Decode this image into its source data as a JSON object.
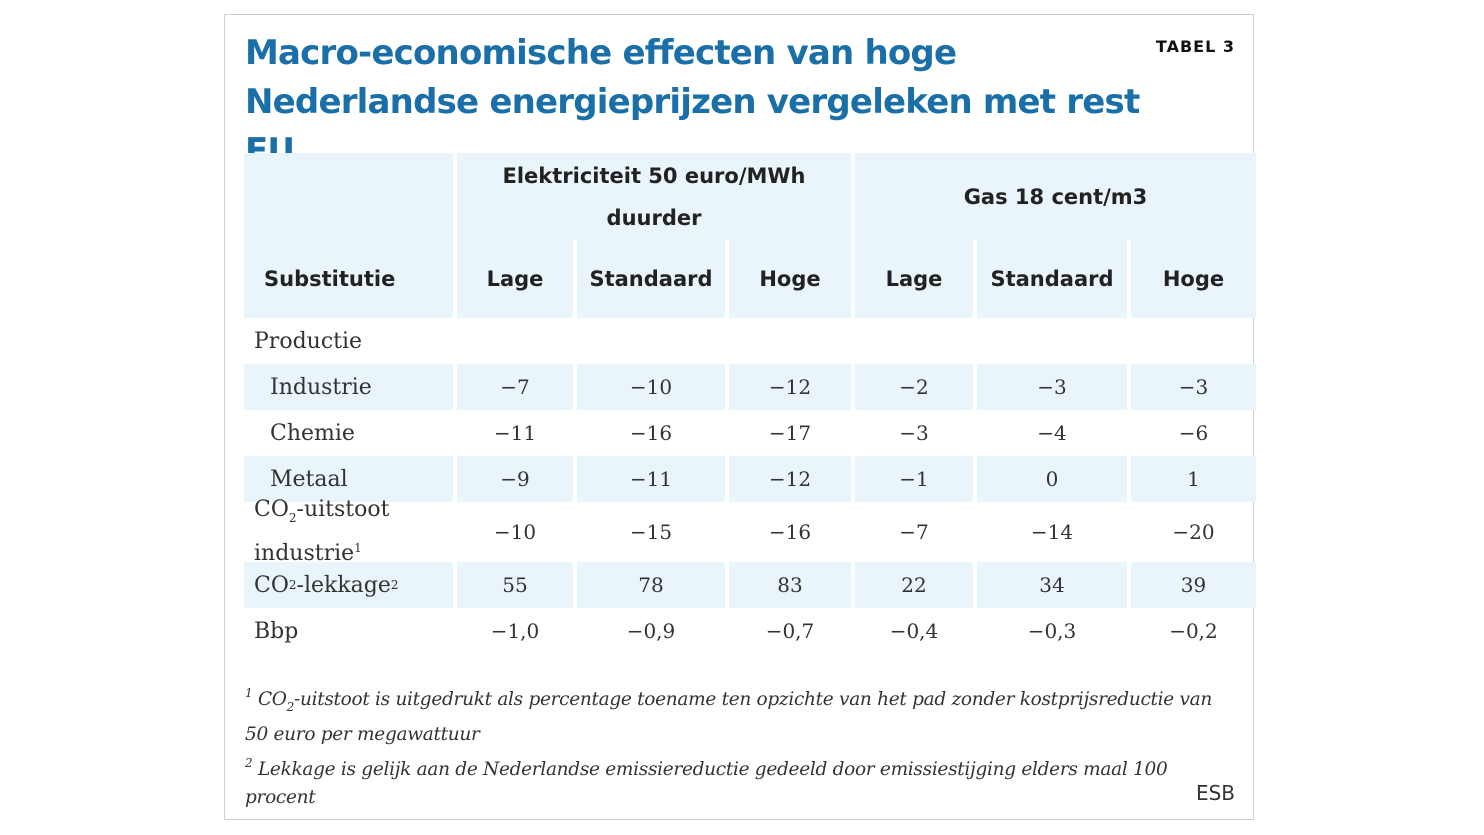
{
  "table": {
    "tag": "TABEL 3",
    "title_line1": "Macro-economische effecten van hoge",
    "title_line2": "Nederlandse energieprijzen vergeleken met rest EU",
    "group_headers": [
      "Elektriciteit 50 euro/MWh duurder",
      "Gas 18 cent/m3"
    ],
    "row_header_label": "Substitutie",
    "column_headers": [
      "Lage",
      "Standaard",
      "Hoge",
      "Lage",
      "Standaard",
      "Hoge"
    ],
    "section_label": "Productie",
    "rows": [
      {
        "label": "Industrie",
        "values": [
          "−7",
          "−10",
          "−12",
          "−2",
          "−3",
          "−3"
        ]
      },
      {
        "label": "Chemie",
        "values": [
          "−11",
          "−16",
          "−17",
          "−3",
          "−4",
          "−6"
        ]
      },
      {
        "label": "Metaal",
        "values": [
          "−9",
          "−11",
          "−12",
          "−1",
          "0",
          "1"
        ]
      },
      {
        "label_co": "CO",
        "label_sub": "2",
        "label_rest": "-uitstoot",
        "label_line2": "industrie",
        "label_sup": "1",
        "values": [
          "−10",
          "−15",
          "−16",
          "−7",
          "−14",
          "−20"
        ]
      },
      {
        "label_co": "CO",
        "label_sub": "2",
        "label_rest": "-lekkage",
        "label_sup": "2",
        "values": [
          "55",
          "78",
          "83",
          "22",
          "34",
          "39"
        ]
      },
      {
        "label": "Bbp",
        "values": [
          "−1,0",
          "−0,9",
          "−0,7",
          "−0,4",
          "−0,3",
          "−0,2"
        ]
      }
    ],
    "footnotes": {
      "note1_marker": "1",
      "note1_co": "CO",
      "note1_sub": "2",
      "note1_text": "-uitstoot is uitgedrukt als percentage toename ten opzichte van het pad zonder kostprijsreductie van 50 euro per megawattuur",
      "note2_marker": "2",
      "note2_text": "Lekkage is gelijk aan de Nederlandse emissiereductie gedeeld door emissiestijging elders maal 100 procent"
    },
    "source": "ESB"
  }
}
